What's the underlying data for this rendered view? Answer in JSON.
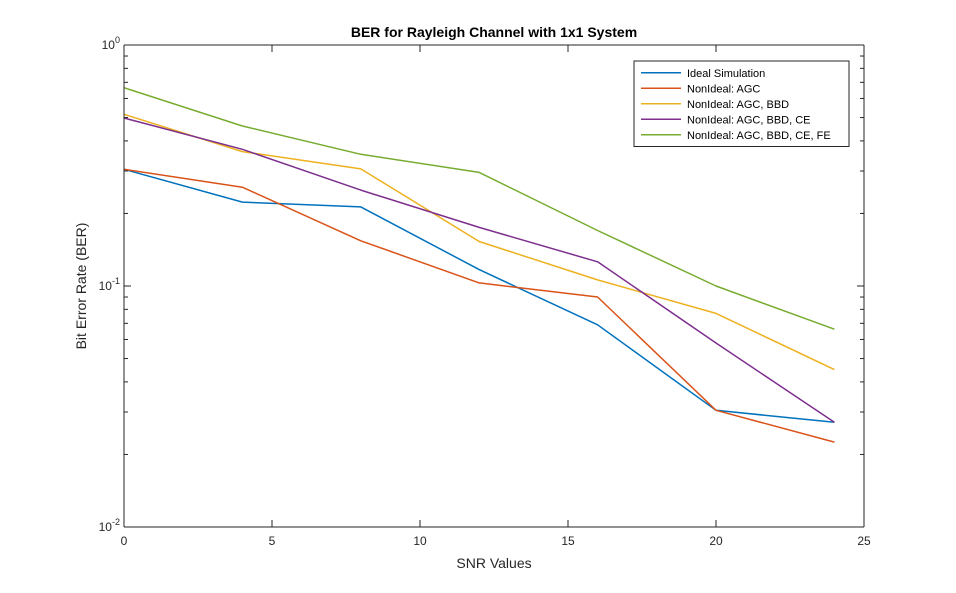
{
  "chart_data": {
    "type": "line",
    "title": "BER for Rayleigh Channel with 1x1 System",
    "xlabel": "SNR Values",
    "ylabel": "Bit Error Rate (BER)",
    "xlim": [
      0,
      25
    ],
    "ylim": [
      0.01,
      1
    ],
    "yscale": "log",
    "grid": false,
    "legend_position": "top-right",
    "x_ticks": [
      {
        "value": 0,
        "label": "0"
      },
      {
        "value": 5,
        "label": "5"
      },
      {
        "value": 10,
        "label": "10"
      },
      {
        "value": 15,
        "label": "15"
      },
      {
        "value": 20,
        "label": "20"
      },
      {
        "value": 25,
        "label": "25"
      }
    ],
    "y_ticks": [
      {
        "value": 0.01,
        "base": "10",
        "exp": "-2"
      },
      {
        "value": 0.1,
        "base": "10",
        "exp": "-1"
      },
      {
        "value": 1,
        "base": "10",
        "exp": "0"
      }
    ],
    "x": [
      0,
      4,
      8,
      12,
      16,
      20,
      24
    ],
    "series": [
      {
        "name": "Ideal Simulation",
        "color": "#0072BD",
        "values": [
          0.305,
          0.223,
          0.213,
          0.117,
          0.069,
          0.0305,
          0.0272
        ]
      },
      {
        "name": "NonIdeal: AGC",
        "color": "#D95319",
        "values": [
          0.305,
          0.257,
          0.154,
          0.103,
          0.09,
          0.0305,
          0.0225
        ]
      },
      {
        "name": "NonIdeal: AGC, BBD",
        "color": "#EDB120",
        "values": [
          0.516,
          0.361,
          0.306,
          0.153,
          0.106,
          0.077,
          0.045
        ]
      },
      {
        "name": "NonIdeal: AGC, BBD, CE",
        "color": "#7E2F8E",
        "values": [
          0.498,
          0.369,
          0.25,
          0.175,
          0.126,
          0.058,
          0.0272
        ]
      },
      {
        "name": "NonIdeal: AGC, BBD, CE, FE",
        "color": "#77AC30",
        "values": [
          0.665,
          0.461,
          0.352,
          0.296,
          0.17,
          0.1,
          0.0662
        ]
      }
    ]
  }
}
